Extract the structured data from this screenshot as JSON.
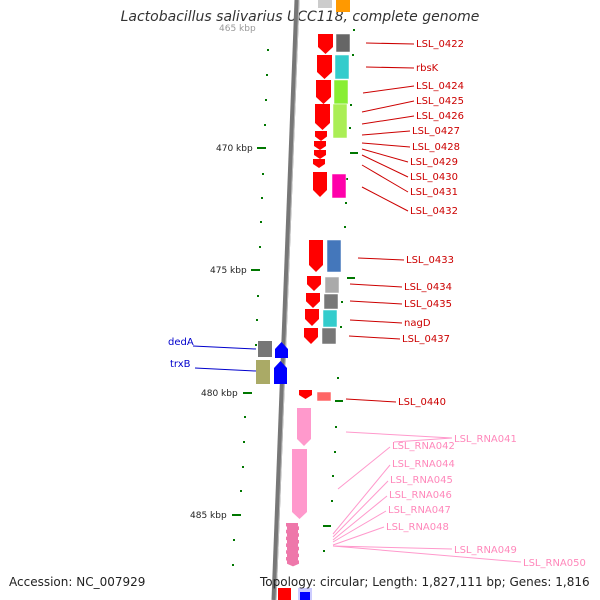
{
  "title": "Lactobacillus salivarius UCC118, complete genome",
  "accession_text": "Accession: NC_007929",
  "topology_text": "Topology: circular; Length: 1,827,111 bp; Genes: 1,816",
  "scale_labels": [
    "470 kbp",
    "475 kbp",
    "480 kbp",
    "485 kbp"
  ],
  "colors": {
    "forward_strand": "#ff0000",
    "reverse_strand": "#0000ff",
    "rna": "#ff99cc",
    "tick": "#007700",
    "backbone": "#888888"
  },
  "genes_right": [
    {
      "label": "LSL_0422",
      "color": "#cc0000"
    },
    {
      "label": "rbsK",
      "color": "#cc0000"
    },
    {
      "label": "LSL_0424",
      "color": "#cc0000"
    },
    {
      "label": "LSL_0425",
      "color": "#cc0000"
    },
    {
      "label": "LSL_0426",
      "color": "#cc0000"
    },
    {
      "label": "LSL_0427",
      "color": "#cc0000"
    },
    {
      "label": "LSL_0428",
      "color": "#cc0000"
    },
    {
      "label": "LSL_0429",
      "color": "#cc0000"
    },
    {
      "label": "LSL_0430",
      "color": "#cc0000"
    },
    {
      "label": "LSL_0431",
      "color": "#cc0000"
    },
    {
      "label": "LSL_0432",
      "color": "#cc0000"
    },
    {
      "label": "LSL_0433",
      "color": "#cc0000"
    },
    {
      "label": "LSL_0434",
      "color": "#cc0000"
    },
    {
      "label": "LSL_0435",
      "color": "#cc0000"
    },
    {
      "label": "nagD",
      "color": "#cc0000"
    },
    {
      "label": "LSL_0437",
      "color": "#cc0000"
    },
    {
      "label": "LSL_0440",
      "color": "#cc0000"
    }
  ],
  "genes_left": [
    {
      "label": "dedA",
      "color": "#0000cc"
    },
    {
      "label": "trxB",
      "color": "#0000cc"
    }
  ],
  "rna_labels": [
    "LSL_RNA041",
    "LSL_RNA042",
    "LSL_RNA044",
    "LSL_RNA045",
    "LSL_RNA046",
    "LSL_RNA047",
    "LSL_RNA048",
    "LSL_RNA049",
    "LSL_RNA050"
  ]
}
